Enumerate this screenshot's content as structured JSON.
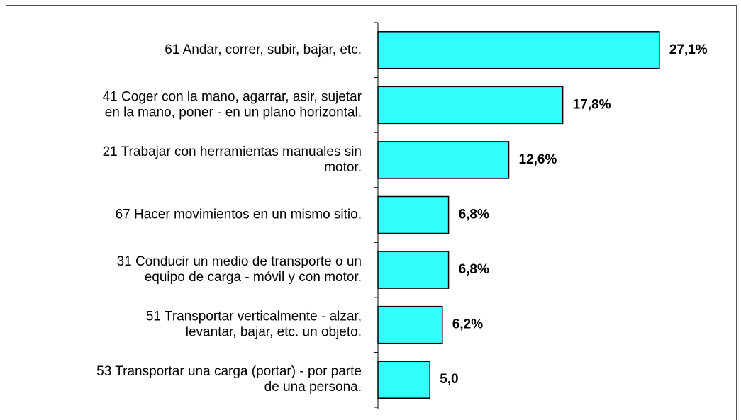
{
  "chart_data": {
    "type": "hbar",
    "categories": [
      [
        "61 Andar, correr, subir, bajar, etc."
      ],
      [
        "41 Coger con la mano, agarrar, asir, sujetar",
        "en la mano, poner - en un plano horizontal."
      ],
      [
        "21 Trabajar con herramientas manuales sin",
        "motor."
      ],
      [
        "67 Hacer movimientos en un mismo sitio."
      ],
      [
        "31 Conducir un medio de transporte o un",
        "equipo de carga - móvil y con motor."
      ],
      [
        "51 Transportar verticalmente - alzar,",
        "levantar, bajar, etc. un objeto."
      ],
      [
        "53 Transportar una carga (portar) - por parte",
        "de una persona."
      ]
    ],
    "values": [
      27.1,
      17.8,
      12.6,
      6.8,
      6.8,
      6.2,
      5.0
    ],
    "value_labels": [
      "27,1%",
      "17,8%",
      "12,6%",
      "6,8%",
      "6,8%",
      "6,2%",
      "5,0"
    ],
    "color": "#33ffff",
    "xlim": [
      0,
      28
    ]
  }
}
